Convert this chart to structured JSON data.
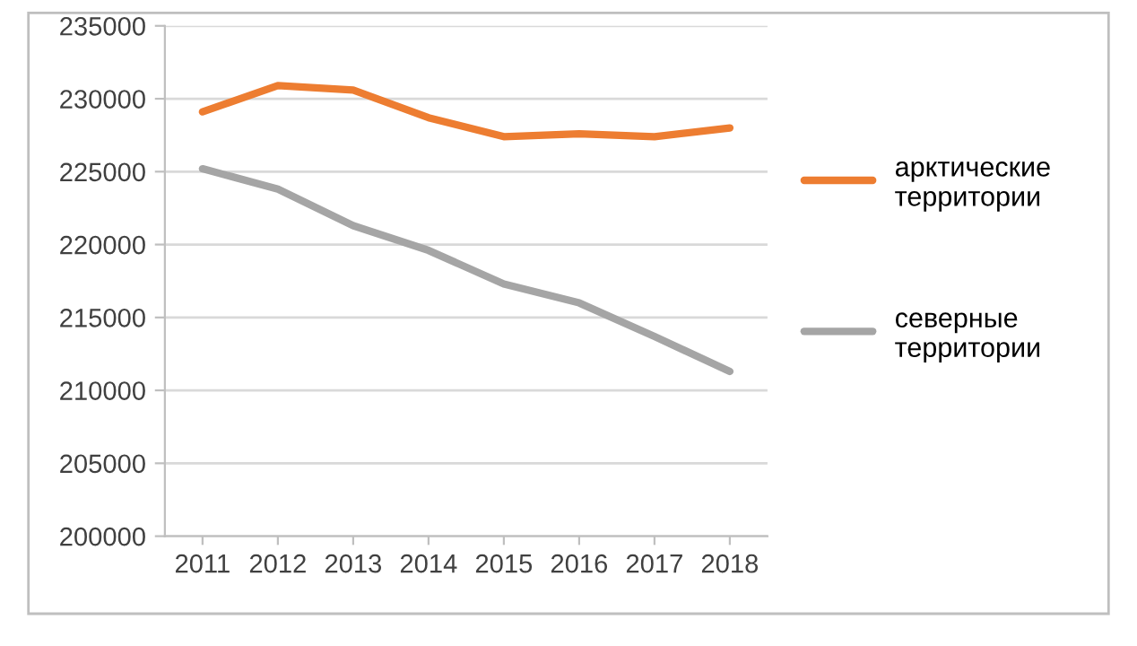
{
  "chart_data": {
    "type": "line",
    "categories": [
      "2011",
      "2012",
      "2013",
      "2014",
      "2015",
      "2016",
      "2017",
      "2018"
    ],
    "series": [
      {
        "name": "арктические территории",
        "color": "#ed7d31",
        "values": [
          229100,
          230900,
          230600,
          228700,
          227400,
          227600,
          227400,
          228000
        ]
      },
      {
        "name": "северные территории",
        "color": "#a5a5a5",
        "values": [
          225200,
          223800,
          221300,
          219600,
          217300,
          216000,
          213700,
          211300
        ]
      }
    ],
    "ylim": [
      200000,
      235000
    ],
    "yticks": [
      200000,
      205000,
      210000,
      215000,
      220000,
      225000,
      230000,
      235000
    ],
    "grid": "y",
    "legend": "right",
    "marker": "none",
    "line_style": "solid"
  }
}
